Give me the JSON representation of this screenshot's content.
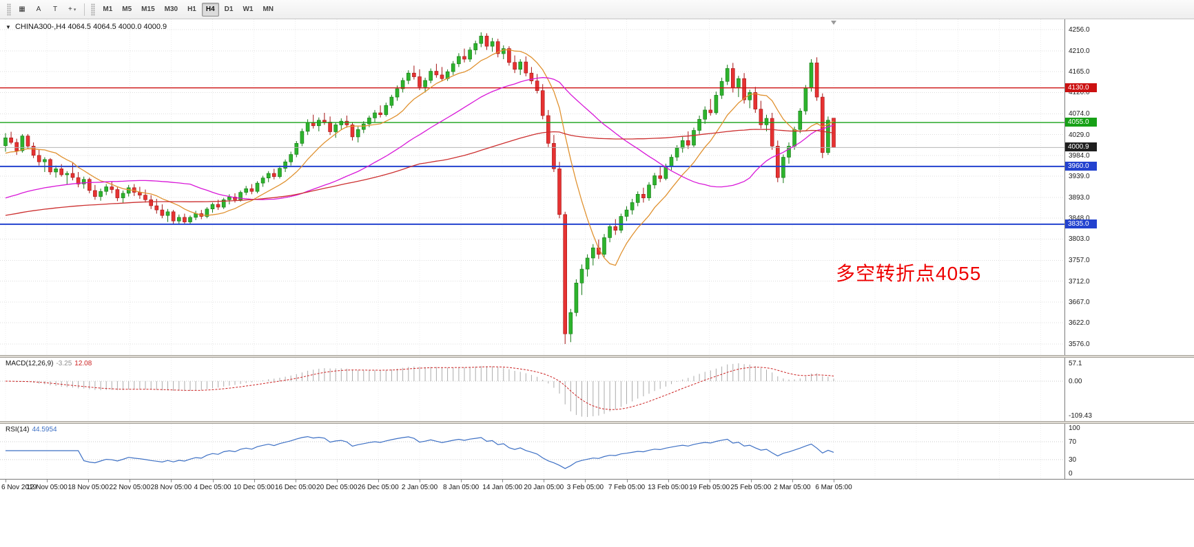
{
  "theme": {
    "bull_fill": "#2db32d",
    "bull_border": "#157815",
    "bear_fill": "#e63232",
    "bear_border": "#a31414",
    "grid_h": "#dcdcdc",
    "grid_v": "#ececec",
    "macd_histogram": "#ababab",
    "macd_signal": "#cc2222",
    "rsi_line": "#3c6fc4",
    "rsi_levels_color": "#c8c8c8"
  },
  "toolbar": {
    "icon_buttons": [
      {
        "id": "templates",
        "glyph": "▦"
      },
      {
        "id": "annotate-a",
        "glyph": "A"
      },
      {
        "id": "text-label",
        "glyph": "T"
      },
      {
        "id": "drawing-tools",
        "glyph": "+",
        "dropdown": "▾"
      }
    ],
    "timeframes": [
      {
        "label": "M1"
      },
      {
        "label": "M5"
      },
      {
        "label": "M15"
      },
      {
        "label": "M30"
      },
      {
        "label": "H1"
      },
      {
        "label": "H4",
        "active": true
      },
      {
        "label": "D1"
      },
      {
        "label": "W1"
      },
      {
        "label": "MN"
      }
    ]
  },
  "main_chart": {
    "collapse_arrow": "▼",
    "symbol": "CHINA300-,H4",
    "ohlc_text": "4064.5 4064.5 4000.0 4000.9",
    "annotation": {
      "text": "多空转折点4055",
      "color": "#ee0000"
    },
    "levels": [
      {
        "price": 4130.0,
        "label": "4130.0",
        "color": "#cc1111",
        "width": 1.4
      },
      {
        "price": 4055.0,
        "label": "4055.0",
        "color": "#16a016",
        "width": 1.4
      },
      {
        "price": 4000.9,
        "label": "4000.9",
        "color": "#b4b4b4",
        "width": 1,
        "badge_color": "#1f1f1f"
      },
      {
        "price": 3960.0,
        "label": "3960.0",
        "color": "#2342cf",
        "width": 2
      },
      {
        "price": 3835.0,
        "label": "3835.0",
        "color": "#2342cf",
        "width": 2
      }
    ]
  },
  "price_axis": {
    "ticks": [
      "4256.0",
      "4210.0",
      "4165.0",
      "4120.0",
      "4074.0",
      "4029.0",
      "3984.0",
      "3939.0",
      "3893.0",
      "3848.0",
      "3803.0",
      "3757.0",
      "3712.0",
      "3667.0",
      "3622.0",
      "3576.0"
    ]
  },
  "macd_panel": {
    "name": "MACD(12,26,9)",
    "value1": "-3.25",
    "value2": "12.08",
    "axis": [
      "57.1",
      "0.00",
      "-109.43"
    ]
  },
  "rsi_panel": {
    "name": "RSI(14)",
    "value": "44.5954",
    "axis": [
      "100",
      "70",
      "30",
      "0"
    ]
  },
  "time_axis": {
    "labels": [
      "6 Nov 2019",
      "12 Nov 05:00",
      "18 Nov 05:00",
      "22 Nov 05:00",
      "28 Nov 05:00",
      "4 Dec 05:00",
      "10 Dec 05:00",
      "16 Dec 05:00",
      "20 Dec 05:00",
      "26 Dec 05:00",
      "2 Jan 05:00",
      "8 Jan 05:00",
      "14 Jan 05:00",
      "20 Jan 05:00",
      "3 Feb 05:00",
      "7 Feb 05:00",
      "13 Feb 05:00",
      "19 Feb 05:00",
      "25 Feb 05:00",
      "2 Mar 05:00",
      "6 Mar 05:00"
    ]
  },
  "chart_data": {
    "type": "candlestick",
    "symbol": "CHINA300-",
    "timeframe": "H4",
    "title": "CHINA300- H4 with MACD(12,26,9) and RSI(14)",
    "y_range": {
      "max": 4256,
      "min": 3576
    },
    "x_labels": [
      "6 Nov 2019",
      "12 Nov 05:00",
      "18 Nov 05:00",
      "22 Nov 05:00",
      "28 Nov 05:00",
      "4 Dec 05:00",
      "10 Dec 05:00",
      "16 Dec 05:00",
      "20 Dec 05:00",
      "26 Dec 05:00",
      "2 Jan 05:00",
      "8 Jan 05:00",
      "14 Jan 05:00",
      "20 Jan 05:00",
      "3 Feb 05:00",
      "7 Feb 05:00",
      "13 Feb 05:00",
      "19 Feb 05:00",
      "25 Feb 05:00",
      "2 Mar 05:00",
      "6 Mar 05:00"
    ],
    "last_bar_ohlc": [
      4064.5,
      4064.5,
      4000.0,
      4000.9
    ],
    "horizontal_levels": [
      4130.0,
      4055.0,
      4000.9,
      3960.0,
      3835.0
    ],
    "candles": [
      [
        4005,
        4032,
        3992,
        4022
      ],
      [
        4022,
        4035,
        4008,
        4012
      ],
      [
        4012,
        4020,
        3985,
        3994
      ],
      [
        3994,
        4030,
        3990,
        4026
      ],
      [
        4026,
        4030,
        3998,
        4004
      ],
      [
        4004,
        4012,
        3978,
        3984
      ],
      [
        3984,
        3996,
        3962,
        3970
      ],
      [
        3970,
        3980,
        3948,
        3975
      ],
      [
        3975,
        3978,
        3942,
        3948
      ],
      [
        3948,
        3962,
        3936,
        3955
      ],
      [
        3955,
        3965,
        3938,
        3942
      ],
      [
        3942,
        3950,
        3922,
        3945
      ],
      [
        3945,
        3968,
        3930,
        3936
      ],
      [
        3936,
        3948,
        3915,
        3922
      ],
      [
        3922,
        3938,
        3912,
        3932
      ],
      [
        3932,
        3936,
        3902,
        3908
      ],
      [
        3908,
        3920,
        3888,
        3895
      ],
      [
        3895,
        3912,
        3886,
        3906
      ],
      [
        3906,
        3922,
        3898,
        3916
      ],
      [
        3916,
        3928,
        3902,
        3910
      ],
      [
        3910,
        3915,
        3885,
        3892
      ],
      [
        3892,
        3908,
        3882,
        3902
      ],
      [
        3902,
        3920,
        3895,
        3914
      ],
      [
        3914,
        3922,
        3896,
        3904
      ],
      [
        3904,
        3916,
        3890,
        3898
      ],
      [
        3898,
        3910,
        3882,
        3888
      ],
      [
        3888,
        3898,
        3868,
        3875
      ],
      [
        3875,
        3890,
        3858,
        3866
      ],
      [
        3866,
        3878,
        3848,
        3854
      ],
      [
        3854,
        3868,
        3840,
        3862
      ],
      [
        3862,
        3866,
        3836,
        3842
      ],
      [
        3842,
        3856,
        3834,
        3850
      ],
      [
        3850,
        3858,
        3836,
        3840
      ],
      [
        3840,
        3854,
        3835,
        3850
      ],
      [
        3850,
        3864,
        3844,
        3858
      ],
      [
        3858,
        3866,
        3846,
        3852
      ],
      [
        3852,
        3872,
        3848,
        3868
      ],
      [
        3868,
        3882,
        3860,
        3878
      ],
      [
        3878,
        3888,
        3866,
        3872
      ],
      [
        3872,
        3892,
        3868,
        3888
      ],
      [
        3888,
        3900,
        3878,
        3894
      ],
      [
        3894,
        3902,
        3882,
        3888
      ],
      [
        3888,
        3908,
        3884,
        3904
      ],
      [
        3904,
        3918,
        3898,
        3912
      ],
      [
        3912,
        3922,
        3900,
        3906
      ],
      [
        3906,
        3928,
        3902,
        3924
      ],
      [
        3924,
        3940,
        3916,
        3935
      ],
      [
        3935,
        3950,
        3926,
        3945
      ],
      [
        3945,
        3955,
        3932,
        3938
      ],
      [
        3938,
        3962,
        3934,
        3956
      ],
      [
        3956,
        3975,
        3948,
        3970
      ],
      [
        3970,
        3992,
        3962,
        3986
      ],
      [
        3986,
        4015,
        3980,
        4010
      ],
      [
        4010,
        4042,
        4004,
        4036
      ],
      [
        4036,
        4062,
        4028,
        4055
      ],
      [
        4055,
        4072,
        4042,
        4048
      ],
      [
        4048,
        4066,
        4036,
        4060
      ],
      [
        4060,
        4076,
        4050,
        4056
      ],
      [
        4056,
        4068,
        4028,
        4035
      ],
      [
        4035,
        4055,
        4022,
        4050
      ],
      [
        4050,
        4064,
        4040,
        4058
      ],
      [
        4058,
        4070,
        4044,
        4050
      ],
      [
        4050,
        4056,
        4016,
        4024
      ],
      [
        4024,
        4046,
        4012,
        4040
      ],
      [
        4040,
        4058,
        4032,
        4052
      ],
      [
        4052,
        4070,
        4045,
        4065
      ],
      [
        4065,
        4082,
        4056,
        4076
      ],
      [
        4076,
        4092,
        4066,
        4072
      ],
      [
        4072,
        4098,
        4068,
        4092
      ],
      [
        4092,
        4115,
        4086,
        4110
      ],
      [
        4110,
        4135,
        4102,
        4128
      ],
      [
        4128,
        4152,
        4120,
        4146
      ],
      [
        4146,
        4168,
        4138,
        4162
      ],
      [
        4162,
        4178,
        4148,
        4154
      ],
      [
        4154,
        4170,
        4125,
        4132
      ],
      [
        4132,
        4152,
        4120,
        4146
      ],
      [
        4146,
        4172,
        4140,
        4166
      ],
      [
        4166,
        4182,
        4152,
        4158
      ],
      [
        4158,
        4175,
        4144,
        4150
      ],
      [
        4150,
        4170,
        4145,
        4165
      ],
      [
        4165,
        4188,
        4158,
        4182
      ],
      [
        4182,
        4205,
        4175,
        4198
      ],
      [
        4198,
        4215,
        4185,
        4192
      ],
      [
        4192,
        4218,
        4186,
        4212
      ],
      [
        4212,
        4232,
        4202,
        4226
      ],
      [
        4226,
        4250,
        4218,
        4242
      ],
      [
        4242,
        4248,
        4212,
        4220
      ],
      [
        4220,
        4238,
        4208,
        4230
      ],
      [
        4230,
        4236,
        4196,
        4204
      ],
      [
        4204,
        4222,
        4192,
        4215
      ],
      [
        4215,
        4220,
        4178,
        4185
      ],
      [
        4185,
        4200,
        4162,
        4170
      ],
      [
        4170,
        4192,
        4158,
        4186
      ],
      [
        4186,
        4198,
        4155,
        4162
      ],
      [
        4162,
        4175,
        4138,
        4145
      ],
      [
        4145,
        4160,
        4118,
        4124
      ],
      [
        4124,
        4138,
        4062,
        4070
      ],
      [
        4070,
        4082,
        4002,
        4010
      ],
      [
        4010,
        4028,
        3948,
        3955
      ],
      [
        3955,
        3970,
        3848,
        3856
      ],
      [
        3856,
        3862,
        3576,
        3598
      ],
      [
        3598,
        3652,
        3580,
        3644
      ],
      [
        3644,
        3716,
        3636,
        3708
      ],
      [
        3708,
        3748,
        3682,
        3738
      ],
      [
        3738,
        3770,
        3722,
        3762
      ],
      [
        3762,
        3792,
        3746,
        3784
      ],
      [
        3784,
        3802,
        3760,
        3770
      ],
      [
        3770,
        3814,
        3764,
        3806
      ],
      [
        3806,
        3836,
        3796,
        3830
      ],
      [
        3830,
        3846,
        3812,
        3822
      ],
      [
        3822,
        3858,
        3816,
        3852
      ],
      [
        3852,
        3874,
        3842,
        3866
      ],
      [
        3866,
        3890,
        3856,
        3882
      ],
      [
        3882,
        3906,
        3874,
        3900
      ],
      [
        3900,
        3914,
        3882,
        3892
      ],
      [
        3892,
        3926,
        3886,
        3920
      ],
      [
        3920,
        3946,
        3912,
        3940
      ],
      [
        3940,
        3960,
        3926,
        3934
      ],
      [
        3934,
        3966,
        3930,
        3960
      ],
      [
        3960,
        3986,
        3952,
        3980
      ],
      [
        3980,
        4006,
        3972,
        4000
      ],
      [
        4000,
        4024,
        3990,
        4016
      ],
      [
        4016,
        4036,
        3998,
        4006
      ],
      [
        4006,
        4044,
        4002,
        4038
      ],
      [
        4038,
        4070,
        4030,
        4062
      ],
      [
        4062,
        4090,
        4052,
        4082
      ],
      [
        4082,
        4106,
        4070,
        4076
      ],
      [
        4076,
        4122,
        4072,
        4114
      ],
      [
        4114,
        4152,
        4106,
        4144
      ],
      [
        4144,
        4180,
        4136,
        4172
      ],
      [
        4172,
        4184,
        4120,
        4130
      ],
      [
        4130,
        4156,
        4110,
        4150
      ],
      [
        4150,
        4162,
        4096,
        4104
      ],
      [
        4104,
        4126,
        4086,
        4120
      ],
      [
        4120,
        4132,
        4076,
        4084
      ],
      [
        4084,
        4102,
        4042,
        4050
      ],
      [
        4050,
        4072,
        4036,
        4064
      ],
      [
        4064,
        4076,
        3996,
        4004
      ],
      [
        4004,
        4016,
        3926,
        3936
      ],
      [
        3936,
        3986,
        3924,
        3980
      ],
      [
        3980,
        4012,
        3966,
        4004
      ],
      [
        4004,
        4046,
        3996,
        4040
      ],
      [
        4040,
        4086,
        4032,
        4080
      ],
      [
        4080,
        4136,
        4072,
        4130
      ],
      [
        4130,
        4192,
        4122,
        4184
      ],
      [
        4184,
        4196,
        4102,
        4110
      ],
      [
        4110,
        4118,
        3978,
        3990
      ],
      [
        3990,
        4068,
        3985,
        4060
      ],
      [
        4064.5,
        4064.5,
        4000.0,
        4000.9
      ]
    ],
    "overlays": [
      {
        "type": "sma",
        "period": 10,
        "seed": 3985,
        "color": "#e0912f",
        "name": "fast-ma-orange"
      },
      {
        "type": "sma",
        "period": 34,
        "seed": 3888,
        "color": "#d816d8",
        "name": "mid-ma-magenta"
      },
      {
        "type": "sma",
        "period": 75,
        "seed": 3852,
        "color": "#cc2e2e",
        "name": "slow-ma-red"
      }
    ],
    "indicators": [
      {
        "type": "macd",
        "fast": 12,
        "slow": 26,
        "signal": 9,
        "current_values": [
          -3.25,
          12.08
        ],
        "y_ticks": [
          57.1,
          0,
          -109.43
        ]
      },
      {
        "type": "rsi",
        "period": 14,
        "current_value": 44.5954,
        "y_ticks": [
          100,
          70,
          30,
          0
        ],
        "levels": [
          70,
          30
        ]
      }
    ]
  }
}
